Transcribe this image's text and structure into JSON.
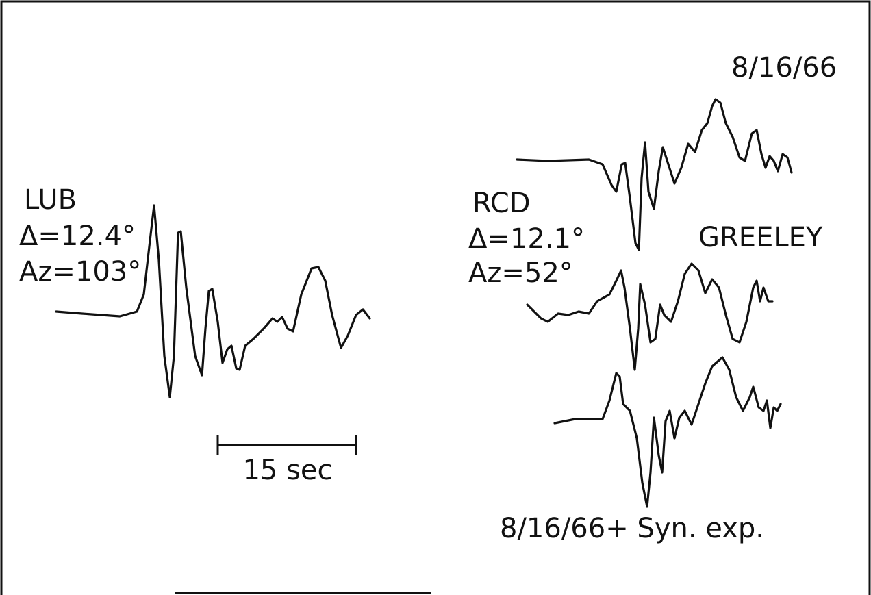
{
  "left_station": {
    "name": "LUB",
    "distance": "Δ=12.4°",
    "azimuth": "Az=103°"
  },
  "scale_bar": {
    "label": "15 sec"
  },
  "right_station": {
    "name": "RCD",
    "distance": "Δ=12.1°",
    "azimuth": "Az=52°",
    "site": "GREELEY",
    "trace_top_label": "8/16/66",
    "trace_bottom_label": "8/16/66+ Syn. exp."
  }
}
